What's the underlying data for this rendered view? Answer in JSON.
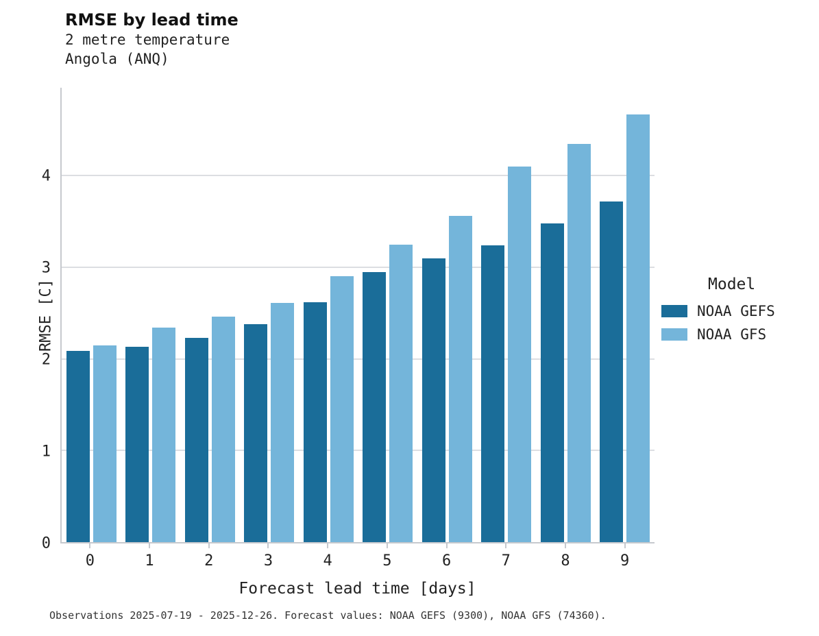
{
  "title": "RMSE by lead time",
  "subtitle_variable": "2 metre temperature",
  "subtitle_region": "Angola (ANQ)",
  "caption": "Observations 2025-07-19 - 2025-12-26. Forecast values: NOAA GEFS (9300), NOAA GFS (74360).",
  "legend": {
    "title": "Model"
  },
  "colors": {
    "noaa_gefs": "#1a6d99",
    "noaa_gfs": "#74b5da",
    "gridline": "#dcdee2",
    "axis": "#c6c9ce"
  },
  "chart_data": {
    "type": "bar",
    "title": "RMSE by lead time",
    "subtitle": [
      "2 metre temperature",
      "Angola (ANQ)"
    ],
    "xlabel": "Forecast lead time [days]",
    "ylabel": "RMSE [C]",
    "categories": [
      "0",
      "1",
      "2",
      "3",
      "4",
      "5",
      "6",
      "7",
      "8",
      "9"
    ],
    "series": [
      {
        "name": "NOAA GEFS",
        "color": "#1a6d99",
        "values": [
          2.09,
          2.13,
          2.23,
          2.38,
          2.62,
          2.95,
          3.1,
          3.24,
          3.48,
          3.72
        ]
      },
      {
        "name": "NOAA GFS",
        "color": "#74b5da",
        "values": [
          2.15,
          2.34,
          2.46,
          2.61,
          2.9,
          3.25,
          3.56,
          4.1,
          4.35,
          4.67
        ]
      }
    ],
    "ylim": [
      0,
      4.96
    ],
    "yticks": [
      0,
      1,
      2,
      3,
      4
    ],
    "grid": true,
    "legend_position": "right",
    "legend_title": "Model"
  }
}
